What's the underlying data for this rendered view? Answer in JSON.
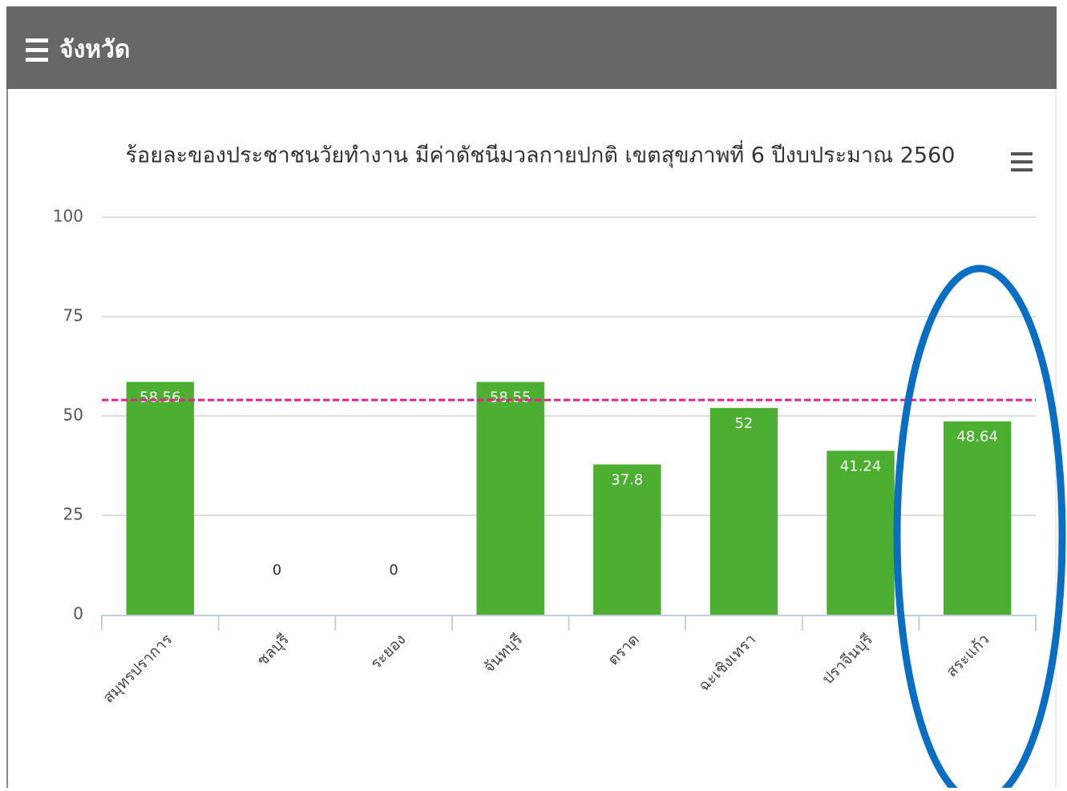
{
  "header": {
    "title": "จังหวัด"
  },
  "chart_data": {
    "type": "bar",
    "title": "ร้อยละของประชาชนวัยทำงาน มีค่าดัชนีมวลกายปกติ เขตสุขภาพที่ 6 ปีงบประมาณ 2560",
    "categories": [
      "สมุทรปราการ",
      "ชลบุรี",
      "ระยอง",
      "จันทบุรี",
      "ตราด",
      "ฉะเชิงเทรา",
      "ปราจีนบุรี",
      "สระแก้ว"
    ],
    "values": [
      58.56,
      0,
      0,
      58.55,
      37.8,
      52,
      41.24,
      48.64
    ],
    "color": "#4caf32",
    "ylim": [
      0,
      100
    ],
    "yticks": [
      0,
      25,
      50,
      75,
      100
    ],
    "grid": true,
    "target_line": {
      "value": 54,
      "color": "#e91e8c"
    }
  }
}
